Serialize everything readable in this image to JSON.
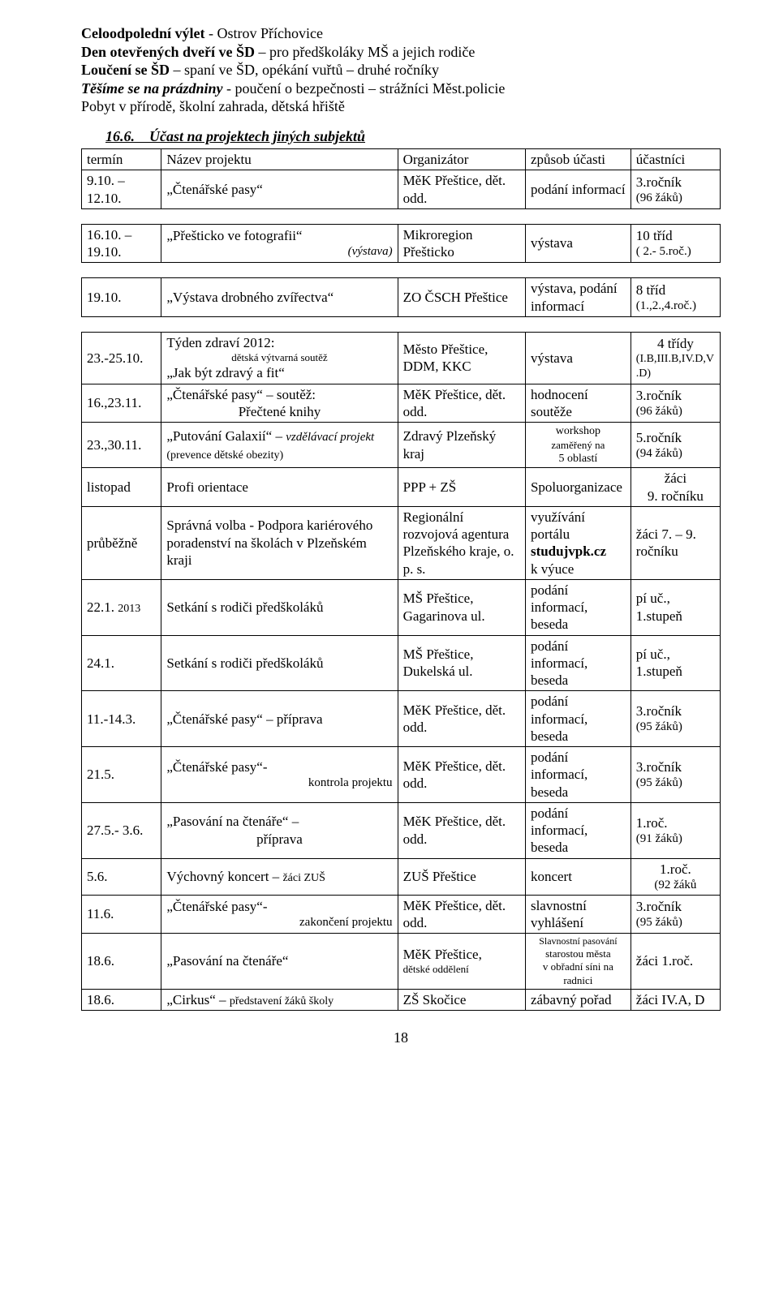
{
  "intro": {
    "line1_bold": "Celoodpolední výlet",
    "line1_rest": " - Ostrov Příchovice",
    "line2_bold": "Den otevřených dveří ve ŠD",
    "line2_rest": " – pro předškoláky MŠ a jejich rodiče",
    "line3_bold": "Loučení se ŠD",
    "line3_rest": " – spaní ve ŠD, opékání vuřtů – druhé ročníky",
    "line4_bolditalic": "Těšíme se na prázdniny",
    "line4_rest": " - poučení o bezpečnosti – strážníci Měst.policie",
    "line5": "Pobyt v přírodě, školní zahrada, dětská hřiště"
  },
  "sectionHeading": "16.6. Účast na projektech jiných subjektů",
  "headers": {
    "c1": "termín",
    "c2": "Název projektu",
    "c3": "Organizátor",
    "c4": "způsob účasti",
    "c5": "účastníci"
  },
  "rowA": {
    "termin": "9.10. – 12.10.",
    "name": "„Čtenářské pasy“",
    "org": "MěK Přeštice, dět. odd.",
    "ucast": "podání informací",
    "ucastnici_top": "3.ročník",
    "ucastnici_sub": "(96 žáků)"
  },
  "rowB": {
    "termin": "16.10. – 19.10.",
    "name_main": "„Přešticko ve fotografii“",
    "name_sub": "(výstava)",
    "org": "Mikroregion Přešticko",
    "ucast": "výstava",
    "ucastnici_top": "10 tříd",
    "ucastnici_sub": "( 2.- 5.roč.)"
  },
  "rowC": {
    "termin": "19.10.",
    "name": "„Výstava drobného zvířectva“",
    "org": "ZO ČSCH Přeštice",
    "ucast": "výstava, podání informací",
    "ucastnici_top": "8 tříd",
    "ucastnici_sub": "(1.,2.,4.roč.)"
  },
  "rows": [
    {
      "termin": "23.-25.10.",
      "name": [
        "Týden zdraví 2012:",
        "dětská výtvarná soutěž",
        "„Jak být zdravý a fit“"
      ],
      "name_classes": [
        "",
        "center-sub",
        ""
      ],
      "org": "Město Přeštice, DDM, KKC",
      "ucast": "výstava",
      "ucastnici": [
        "4 třídy",
        "(I.B,III.B,IV.D,V.D)"
      ],
      "ucastnici_classes": [
        "tac",
        "small"
      ]
    },
    {
      "termin": "16.,23.11.",
      "name": [
        "„Čtenářské pasy“ – soutěž:",
        "Přečtené knihy"
      ],
      "name_classes": [
        "",
        "tac"
      ],
      "org": "MěK Přeštice, dět. odd.",
      "ucast": "hodnocení soutěže",
      "ucastnici": [
        "3.ročník",
        "(96 žáků)"
      ],
      "ucastnici_classes": [
        "",
        "sub"
      ]
    },
    {
      "termin": "23.,30.11.",
      "name": [
        "„Putování Galaxií“ – ",
        "vzdělávací projekt ",
        "(prevence dětské obezity)"
      ],
      "name_inline": true,
      "name_classes": [
        "",
        "italic sub",
        "small"
      ],
      "org": "Zdravý Plzeňský kraj",
      "ucast_lines": [
        "workshop",
        "zaměřený na",
        "5 oblastí"
      ],
      "ucast_classes": [
        "tac small",
        "tac small13",
        "tac small"
      ],
      "ucastnici": [
        "5.ročník",
        "(94 žáků)"
      ],
      "ucastnici_classes": [
        "",
        "sub"
      ]
    },
    {
      "termin": "listopad",
      "name": [
        "Profi orientace"
      ],
      "name_classes": [
        ""
      ],
      "org": "PPP + ZŠ",
      "ucast": "Spoluorganizace",
      "ucastnici": [
        "žáci",
        "9. ročníku"
      ],
      "ucastnici_classes": [
        "tac",
        "tac"
      ]
    },
    {
      "termin": "průběžně",
      "name": [
        "Správná volba - Podpora kariérového poradenství na školách v Plzeňském kraji"
      ],
      "name_classes": [
        ""
      ],
      "org": "Regionální rozvojová agentura Plzeňského kraje, o. p. s.",
      "ucast_html": "využívání portálu <b>studujvpk.cz</b> k výuce",
      "ucastnici": [
        "žáci 7. – 9. ročníku"
      ],
      "ucastnici_classes": [
        ""
      ]
    },
    {
      "termin_html": "22.1. <span class='small'>2013</span>",
      "name": [
        "Setkání s rodiči předškoláků"
      ],
      "name_classes": [
        ""
      ],
      "org": "MŠ Přeštice, Gagarinova ul.",
      "ucast": "podání informací, beseda",
      "ucastnici": [
        "pí uč.,",
        "1.stupeň"
      ],
      "ucastnici_classes": [
        "",
        ""
      ]
    },
    {
      "termin": "24.1.",
      "name": [
        "Setkání s rodiči předškoláků"
      ],
      "name_classes": [
        ""
      ],
      "org": "MŠ Přeštice, Dukelská ul.",
      "ucast": "podání informací, beseda",
      "ucastnici": [
        "pí uč.,",
        "1.stupeň"
      ],
      "ucastnici_classes": [
        "",
        ""
      ]
    },
    {
      "termin": "11.-14.3.",
      "name": [
        "„Čtenářské pasy“ – příprava"
      ],
      "name_classes": [
        ""
      ],
      "org": "MěK Přeštice, dět. odd.",
      "ucast": "podání informací, beseda",
      "ucastnici": [
        "3.ročník",
        "(95 žáků)"
      ],
      "ucastnici_classes": [
        "",
        "sub"
      ]
    },
    {
      "termin": "21.5.",
      "name": [
        "„Čtenářské pasy“- ",
        "kontrola projektu"
      ],
      "name_inline_right": true,
      "name_classes": [
        "",
        "sub"
      ],
      "org": "MěK Přeštice, dět. odd.",
      "ucast": "podání informací, beseda",
      "ucastnici": [
        "3.ročník",
        "(95 žáků)"
      ],
      "ucastnici_classes": [
        "",
        "sub"
      ]
    },
    {
      "termin": "27.5.- 3.6.",
      "name": [
        "„Pasování na čtenáře“ –",
        "příprava"
      ],
      "name_classes": [
        "",
        "tac"
      ],
      "org": "MěK Přeštice, dět. odd.",
      "ucast": "podání informací, beseda",
      "ucastnici": [
        "1.roč.",
        "(91 žáků)"
      ],
      "ucastnici_classes": [
        "",
        "sub"
      ]
    },
    {
      "termin": "5.6.",
      "name_html": "Výchovný koncert – <span class='small'>žáci ZUŠ</span>",
      "org": "ZUŠ Přeštice",
      "ucast": "koncert",
      "ucastnici": [
        "1.roč.",
        "(92 žáků"
      ],
      "ucastnici_classes": [
        "tac",
        "tac sub"
      ]
    },
    {
      "termin": "11.6.",
      "name": [
        "„Čtenářské pasy“- ",
        "zakončení projektu"
      ],
      "name_inline_right": true,
      "name_classes": [
        "",
        "sub"
      ],
      "org": "MěK Přeštice, dět. odd.",
      "ucast": "slavnostní vyhlášení",
      "ucastnici": [
        "3.ročník",
        "(95 žáků)"
      ],
      "ucastnici_classes": [
        "",
        "sub"
      ]
    },
    {
      "termin": "18.6.",
      "name": [
        "„Pasování na čtenáře“"
      ],
      "name_classes": [
        ""
      ],
      "org_lines": [
        "MěK Přeštice,",
        "dětské oddělení"
      ],
      "org_classes": [
        "",
        "small13"
      ],
      "ucast_lines": [
        "Slavnostní pasování",
        "starostou města",
        "v obřadní síni na",
        "radnici"
      ],
      "ucast_classes": [
        "tac xs",
        "tac small13",
        "tac small13",
        "tac small13"
      ],
      "ucastnici": [
        "žáci 1.roč."
      ],
      "ucastnici_classes": [
        ""
      ]
    },
    {
      "termin": "18.6.",
      "name_html": "„Cirkus“ – <span class='small'>představení žáků školy</span>",
      "org": "ZŠ Skočice",
      "ucast": "zábavný pořad",
      "ucastnici": [
        "žáci IV.A, D"
      ],
      "ucastnici_classes": [
        ""
      ]
    }
  ],
  "pageNumber": "18"
}
